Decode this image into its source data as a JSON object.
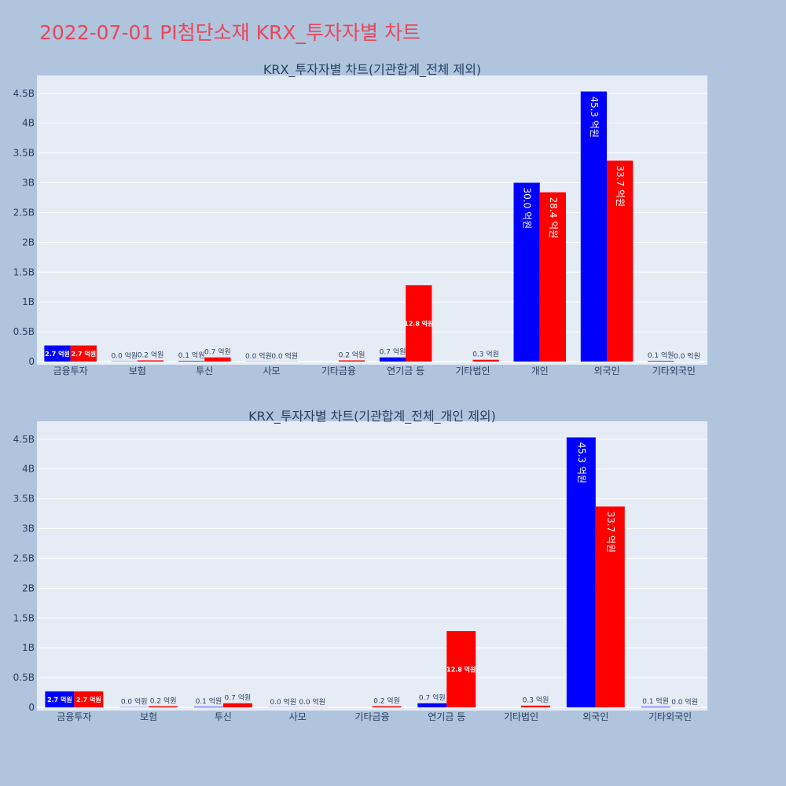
{
  "page": {
    "title": "2022-07-01 PI첨단소재 KRX_투자자별 차트"
  },
  "colors": {
    "buy": "#0000ff",
    "sell": "#ff0000",
    "plot_bg": "#e5ecf6",
    "page_bg": "#b0c4de"
  },
  "chart_data": [
    {
      "type": "bar",
      "title": "KRX_투자자별 차트(기관합계_전체 제외)",
      "categories": [
        "금융투자",
        "보험",
        "투신",
        "사모",
        "기타금융",
        "연기금 등",
        "기타법인",
        "개인",
        "외국인",
        "기타외국인"
      ],
      "series": [
        {
          "name": "매수",
          "color": "#0000ff",
          "values": [
            270000000,
            4000000,
            10000000,
            3000000,
            0,
            70000000,
            0,
            3000000000,
            4530000000,
            10000000
          ],
          "labels": [
            "2.7 억원",
            "0.0 억원",
            "0.1 억원",
            "0.0 억원",
            "",
            "0.7 억원",
            "",
            "30.0 억원",
            "45.3 억원",
            "0.1 억원"
          ]
        },
        {
          "name": "매도",
          "color": "#ff0000",
          "values": [
            270000000,
            20000000,
            70000000,
            3000000,
            20000000,
            1280000000,
            30000000,
            2840000000,
            3370000000,
            2000000
          ],
          "labels": [
            "2.7 억원",
            "0.2 억원",
            "0.7 억원",
            "0.0 억원",
            "0.2 억원",
            "12.8 억원",
            "0.3 억원",
            "28.4 억원",
            "33.7 억원",
            "0.0 억원"
          ]
        }
      ],
      "yticks": [
        0,
        500000000,
        1000000000,
        1500000000,
        2000000000,
        2500000000,
        3000000000,
        3500000000,
        4000000000,
        4500000000
      ],
      "ytick_labels": [
        "0",
        "0.5B",
        "1B",
        "1.5B",
        "2B",
        "2.5B",
        "3B",
        "3.5B",
        "4B",
        "4.5B"
      ],
      "ylim": [
        0,
        4800000000
      ],
      "xlabel": "",
      "ylabel": ""
    },
    {
      "type": "bar",
      "title": "KRX_투자자별 차트(기관합계_전체_개인 제외)",
      "categories": [
        "금융투자",
        "보험",
        "투신",
        "사모",
        "기타금융",
        "연기금 등",
        "기타법인",
        "외국인",
        "기타외국인"
      ],
      "series": [
        {
          "name": "매수",
          "color": "#0000ff",
          "values": [
            270000000,
            4000000,
            10000000,
            3000000,
            0,
            70000000,
            0,
            4530000000,
            10000000
          ],
          "labels": [
            "2.7 억원",
            "0.0 억원",
            "0.1 억원",
            "0.0 억원",
            "",
            "0.7 억원",
            "",
            "45.3 억원",
            "0.1 억원"
          ]
        },
        {
          "name": "매도",
          "color": "#ff0000",
          "values": [
            270000000,
            20000000,
            70000000,
            3000000,
            20000000,
            1280000000,
            30000000,
            3370000000,
            2000000
          ],
          "labels": [
            "2.7 억원",
            "0.2 억원",
            "0.7 억원",
            "0.0 억원",
            "0.2 억원",
            "12.8 억원",
            "0.3 억원",
            "33.7 억원",
            "0.0 억원"
          ]
        }
      ],
      "yticks": [
        0,
        500000000,
        1000000000,
        1500000000,
        2000000000,
        2500000000,
        3000000000,
        3500000000,
        4000000000,
        4500000000
      ],
      "ytick_labels": [
        "0",
        "0.5B",
        "1B",
        "1.5B",
        "2B",
        "2.5B",
        "3B",
        "3.5B",
        "4B",
        "4.5B"
      ],
      "ylim": [
        0,
        4800000000
      ],
      "xlabel": "",
      "ylabel": ""
    }
  ]
}
